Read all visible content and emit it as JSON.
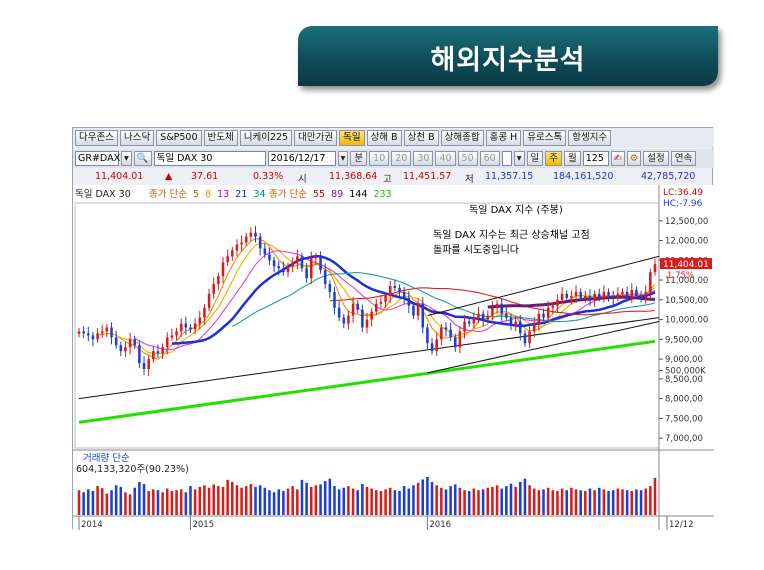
{
  "banner": {
    "title": "해외지수분석"
  },
  "menu": {
    "items": [
      "다우존스",
      "나스닥",
      "S&P500",
      "반도체",
      "니케이225",
      "대만가권",
      "독일",
      "상해 B",
      "상천 B",
      "상해종합",
      "홍콩 H",
      "유로스톡",
      "항셍지수"
    ],
    "active_index": 6
  },
  "toolbar": {
    "code": "GR#DAX",
    "name": "독일 DAX 30",
    "date": "2016/12/17",
    "unit_label": "분",
    "periods": [
      "10",
      "20",
      "30",
      "40",
      "50",
      "60"
    ],
    "day": "일",
    "week": "주",
    "month": "월",
    "count": "125",
    "settings": "설정",
    "continuous": "연속"
  },
  "quote": {
    "price": "11,404.01",
    "arrow": "▲",
    "change": "37.61",
    "pct": "0.33%",
    "open_label": "시",
    "open": "11,368.64",
    "high_label": "고",
    "high": "11,451.57",
    "low_label": "저",
    "low": "11,357.15",
    "volume": "184,161,520",
    "amount": "42,785,720"
  },
  "legend": {
    "name": "독일 DAX 30",
    "ma_short_label": "종가 단순",
    "ma_short_periods": [
      "5",
      "8",
      "13",
      "21",
      "34"
    ],
    "ma_long_label": "종가 단순",
    "ma_long_periods": [
      "55",
      "89",
      "144",
      "233"
    ]
  },
  "annotation": {
    "heading": "독일 DAX 지수 (주봉)",
    "line1": "독일 DAX 지수는 최근 상승채널 고점",
    "line2": "돌파를 시도중입니다"
  },
  "corner": {
    "lc": "LC:36.49",
    "hc": "HC:-7.96"
  },
  "price_tag": "11,404.01",
  "price_tag_pct": "1.75%",
  "volume_panel": {
    "label": "거래량 단순",
    "value": "604,133,320주(90.23%)"
  },
  "colors": {
    "up": "#d81b1b",
    "down": "#1c3fd0",
    "ma_blue": "#1c2fd8",
    "ma_purple": "#6a1b7a",
    "ma_green": "#22e000",
    "banner": "#0e4d59"
  },
  "chart_data": {
    "type": "candlestick",
    "title": "독일 DAX 지수 (주봉)",
    "y_ticks": [
      12500,
      12000,
      11500,
      11000,
      10500,
      10000,
      9500,
      9000,
      8500,
      8000,
      7500,
      7000
    ],
    "y_tick_labels": [
      "12,500,00",
      "12,000,00",
      "11,500,00",
      "11,000,00",
      "10,500,00",
      "10,000,00",
      "9,500,00",
      "9,000,00",
      "8,500,00",
      "8,000,00",
      "7,500,00",
      "7,000,00"
    ],
    "ylim": [
      6750,
      12950
    ],
    "x_labels": [
      {
        "label": "2014",
        "index": 0
      },
      {
        "label": "2015",
        "index": 24
      },
      {
        "label": "2016",
        "index": 75
      },
      {
        "label": "12/12",
        "index": 124
      }
    ],
    "closes": [
      9700,
      9650,
      9600,
      9500,
      9650,
      9700,
      9800,
      9550,
      9350,
      9200,
      9300,
      9500,
      9350,
      8900,
      8750,
      9000,
      9200,
      9150,
      9300,
      9550,
      9600,
      9700,
      9900,
      9800,
      9750,
      9900,
      10050,
      10300,
      10650,
      10900,
      11100,
      11450,
      11600,
      11750,
      11900,
      11950,
      12100,
      12200,
      12100,
      11800,
      11650,
      11500,
      11350,
      11300,
      11200,
      11350,
      11450,
      11600,
      11300,
      11050,
      11550,
      11600,
      11250,
      10900,
      10700,
      10300,
      10050,
      9900,
      10100,
      10400,
      10250,
      9800,
      10000,
      10200,
      10400,
      10450,
      10600,
      10850,
      10800,
      10700,
      10550,
      10350,
      10100,
      10400,
      9800,
      9400,
      9200,
      9500,
      9800,
      9750,
      9550,
      9300,
      9700,
      9950,
      9900,
      10050,
      10150,
      10000,
      10100,
      10300,
      10400,
      10150,
      10050,
      9850,
      9950,
      9650,
      9400,
      9700,
      9900,
      10150,
      10050,
      10300,
      10350,
      10500,
      10650,
      10550,
      10600,
      10700,
      10550,
      10600,
      10500,
      10650,
      10550,
      10700,
      10600,
      10550,
      10650,
      10700,
      10600,
      10750,
      10600,
      10550,
      10700,
      11200,
      11404
    ],
    "volumes": [
      60,
      55,
      62,
      58,
      70,
      65,
      52,
      60,
      72,
      68,
      55,
      50,
      66,
      80,
      75,
      58,
      62,
      60,
      55,
      64,
      58,
      60,
      62,
      55,
      70,
      62,
      68,
      72,
      66,
      74,
      70,
      68,
      85,
      80,
      72,
      66,
      70,
      75,
      68,
      72,
      66,
      60,
      55,
      62,
      58,
      64,
      70,
      62,
      85,
      78,
      68,
      72,
      74,
      82,
      88,
      70,
      62,
      66,
      70,
      64,
      60,
      75,
      68,
      64,
      60,
      58,
      62,
      66,
      60,
      58,
      70,
      64,
      72,
      78,
      86,
      92,
      80,
      72,
      66,
      62,
      70,
      74,
      66,
      60,
      58,
      64,
      60,
      62,
      66,
      68,
      72,
      64,
      70,
      76,
      68,
      80,
      88,
      72,
      64,
      60,
      62,
      66,
      60,
      58,
      64,
      60,
      66,
      62,
      60,
      58,
      64,
      60,
      66,
      62,
      58,
      60,
      64,
      62,
      60,
      58,
      62,
      60,
      64,
      70,
      90
    ],
    "volume_tick": "500,000K"
  }
}
